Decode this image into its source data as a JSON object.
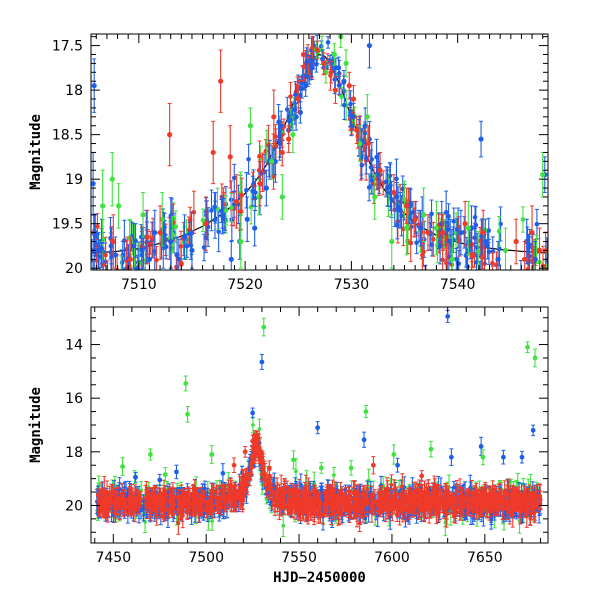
{
  "chart_data": [
    {
      "type": "scatter",
      "panel": "top",
      "xlabel": "",
      "ylabel": "Magnitude",
      "xlim": [
        7505.5,
        7548.5
      ],
      "ylim": [
        20.02,
        17.37
      ],
      "y_inverted": true,
      "xticks": [
        7510,
        7520,
        7530,
        7540
      ],
      "yticks": [
        17.5,
        18,
        18.5,
        19,
        19.5,
        20
      ],
      "ytick_labels": [
        "17.5",
        "18",
        "18.5",
        "19",
        "19.5",
        "20"
      ],
      "colors": {
        "blue": "#1f5fe8",
        "green": "#3fe23f",
        "red": "#ef3a2a",
        "model": "#000000"
      },
      "model_curve": {
        "x": [
          7505.5,
          7508,
          7510,
          7512,
          7514,
          7516,
          7518,
          7520,
          7521,
          7522,
          7523,
          7524,
          7525,
          7526,
          7526.5,
          7527,
          7527.5,
          7528,
          7529,
          7530,
          7531,
          7532,
          7533,
          7534,
          7536,
          7538,
          7540,
          7542,
          7544,
          7546,
          7548.5
        ],
        "y": [
          19.83,
          19.81,
          19.78,
          19.72,
          19.64,
          19.53,
          19.38,
          19.16,
          19.02,
          18.84,
          18.6,
          18.32,
          18.0,
          17.72,
          17.64,
          17.6,
          17.62,
          17.7,
          17.97,
          18.3,
          18.62,
          18.89,
          19.1,
          19.27,
          19.5,
          19.63,
          19.71,
          19.76,
          19.79,
          19.81,
          19.83
        ]
      },
      "series": [
        {
          "name": "",
          "color": "blue",
          "points": [
            [
              7505.7,
              19.05,
              0.35
            ],
            [
              7505.8,
              17.95,
              0.3
            ],
            [
              7505.9,
              19.6,
              0.2
            ],
            [
              7506.2,
              19.8,
              0.2
            ],
            [
              7506.5,
              19.7,
              0.25
            ],
            [
              7507.4,
              19.75,
              0.2
            ],
            [
              7507.8,
              19.85,
              0.2
            ],
            [
              7509.5,
              19.75,
              0.25
            ],
            [
              7510.3,
              19.8,
              0.25
            ],
            [
              7510.7,
              19.65,
              0.3
            ],
            [
              7511.0,
              19.9,
              0.2
            ],
            [
              7511.5,
              19.6,
              0.25
            ],
            [
              7512.3,
              19.75,
              0.25
            ],
            [
              7513.0,
              19.7,
              0.3
            ],
            [
              7513.6,
              19.85,
              0.2
            ],
            [
              7514.3,
              19.65,
              0.25
            ],
            [
              7515.0,
              19.8,
              0.2
            ],
            [
              7518.7,
              19.9,
              0.2
            ],
            [
              7519.5,
              19.7,
              0.2
            ],
            [
              7520.2,
              19.45,
              0.25
            ],
            [
              7520.9,
              19.55,
              0.2
            ],
            [
              7521.4,
              19.2,
              0.2
            ],
            [
              7522.0,
              19.1,
              0.2
            ],
            [
              7522.8,
              18.8,
              0.15
            ],
            [
              7523.3,
              18.6,
              0.15
            ],
            [
              7524.1,
              18.45,
              0.15
            ],
            [
              7524.8,
              18.3,
              0.15
            ],
            [
              7525.2,
              18.25,
              0.12
            ],
            [
              7525.7,
              17.95,
              0.12
            ],
            [
              7526.3,
              17.75,
              0.1
            ],
            [
              7527.3,
              17.65,
              0.1
            ],
            [
              7528.2,
              17.7,
              0.1
            ],
            [
              7528.8,
              17.75,
              0.12
            ],
            [
              7529.3,
              17.9,
              0.12
            ],
            [
              7530.2,
              18.3,
              0.15
            ],
            [
              7531.3,
              18.4,
              0.2
            ],
            [
              7531.7,
              17.5,
              0.25
            ],
            [
              7532.5,
              18.95,
              0.15
            ],
            [
              7533.4,
              19.1,
              0.2
            ],
            [
              7534.6,
              19.35,
              0.2
            ],
            [
              7535.5,
              19.3,
              0.2
            ],
            [
              7536.5,
              19.55,
              0.2
            ],
            [
              7537.4,
              19.6,
              0.2
            ],
            [
              7538.5,
              19.5,
              0.25
            ],
            [
              7539.3,
              19.7,
              0.25
            ],
            [
              7540.3,
              19.6,
              0.25
            ],
            [
              7541.3,
              19.55,
              0.25
            ],
            [
              7542.2,
              18.55,
              0.2
            ],
            [
              7542.6,
              19.7,
              0.25
            ],
            [
              7543.8,
              19.9,
              0.2
            ],
            [
              7546.5,
              19.7,
              0.25
            ],
            [
              7547.3,
              19.9,
              0.2
            ],
            [
              7548.2,
              18.95,
              0.2
            ]
          ]
        },
        {
          "name": "",
          "color": "green",
          "points": [
            [
              7506.6,
              19.3,
              0.4
            ],
            [
              7507.5,
              19.0,
              0.3
            ],
            [
              7508.1,
              19.3,
              0.25
            ],
            [
              7510.4,
              19.4,
              0.25
            ],
            [
              7512.2,
              19.45,
              0.3
            ],
            [
              7519.6,
              19.7,
              0.3
            ],
            [
              7520.5,
              18.4,
              0.2
            ],
            [
              7521.3,
              19.2,
              0.2
            ],
            [
              7522.5,
              18.8,
              0.2
            ],
            [
              7523.5,
              19.2,
              0.25
            ],
            [
              7524.5,
              18.5,
              0.2
            ],
            [
              7526.7,
              17.55,
              0.1
            ],
            [
              7527.6,
              17.8,
              0.12
            ],
            [
              7528.4,
              17.6,
              0.12
            ],
            [
              7529.0,
              17.4,
              0.12
            ],
            [
              7529.5,
              17.7,
              0.15
            ],
            [
              7530.8,
              18.6,
              0.2
            ],
            [
              7531.5,
              18.3,
              0.25
            ],
            [
              7532.2,
              19.2,
              0.25
            ],
            [
              7533.8,
              19.7,
              0.3
            ],
            [
              7535.2,
              19.55,
              0.3
            ],
            [
              7536.8,
              19.4,
              0.3
            ],
            [
              7538.0,
              19.55,
              0.3
            ],
            [
              7539.5,
              19.9,
              0.25
            ],
            [
              7541.0,
              19.55,
              0.3
            ],
            [
              7544.5,
              19.8,
              0.25
            ],
            [
              7548.0,
              18.95,
              0.25
            ]
          ]
        },
        {
          "name": "",
          "color": "red",
          "points": [
            [
              7507.6,
              19.7,
              0.3
            ],
            [
              7509.2,
              19.9,
              0.25
            ],
            [
              7510.8,
              19.65,
              0.3
            ],
            [
              7512.0,
              19.6,
              0.3
            ],
            [
              7512.9,
              18.5,
              0.35
            ],
            [
              7514.0,
              19.95,
              0.2
            ],
            [
              7516.3,
              19.5,
              0.3
            ],
            [
              7517.0,
              18.7,
              0.35
            ],
            [
              7517.7,
              17.9,
              0.35
            ],
            [
              7518.6,
              18.75,
              0.35
            ],
            [
              7519.2,
              19.25,
              0.3
            ],
            [
              7521.4,
              19.05,
              0.25
            ],
            [
              7522.7,
              18.3,
              0.3
            ],
            [
              7523.5,
              18.7,
              0.15
            ],
            [
              7524.1,
              18.55,
              0.15
            ],
            [
              7525.0,
              18.1,
              0.15
            ],
            [
              7525.5,
              17.6,
              0.3
            ],
            [
              7526.8,
              17.55,
              0.1
            ],
            [
              7527.4,
              17.7,
              0.12
            ],
            [
              7528.1,
              17.8,
              0.12
            ],
            [
              7528.5,
              18.0,
              0.15
            ],
            [
              7529.8,
              17.95,
              0.15
            ],
            [
              7530.2,
              18.1,
              0.15
            ],
            [
              7530.5,
              18.45,
              0.15
            ],
            [
              7531.6,
              18.6,
              0.2
            ],
            [
              7532.7,
              18.9,
              0.2
            ],
            [
              7534.0,
              19.15,
              0.2
            ],
            [
              7535.2,
              19.3,
              0.2
            ],
            [
              7536.0,
              19.45,
              0.2
            ],
            [
              7537.2,
              19.6,
              0.2
            ],
            [
              7538.6,
              19.6,
              0.2
            ],
            [
              7540.7,
              19.5,
              0.25
            ],
            [
              7542.4,
              19.6,
              0.25
            ],
            [
              7545.5,
              19.7,
              0.25
            ],
            [
              7546.3,
              19.9,
              0.2
            ],
            [
              7547.0,
              19.6,
              0.3
            ],
            [
              7547.7,
              19.8,
              0.25
            ]
          ]
        }
      ]
    },
    {
      "type": "scatter",
      "panel": "bottom",
      "xlabel": "HJD−2450000",
      "ylabel": "Magnitude",
      "xlim": [
        7438,
        7684
      ],
      "ylim": [
        21.4,
        12.6
      ],
      "y_inverted": true,
      "xticks": [
        7450,
        7500,
        7550,
        7600,
        7650
      ],
      "yticks": [
        14,
        16,
        18,
        20
      ],
      "ytick_labels": [
        "14",
        "16",
        "18",
        "20"
      ],
      "baseline_magnitude": 19.9,
      "outliers": [
        {
          "color": "blue",
          "points": [
            [
              7462,
              18.95
            ],
            [
              7475,
              19.05
            ],
            [
              7484,
              18.75
            ],
            [
              7509,
              18.8
            ],
            [
              7525,
              16.55
            ],
            [
              7530,
              14.65
            ],
            [
              7560,
              17.1
            ],
            [
              7585,
              17.55
            ],
            [
              7603,
              18.5
            ],
            [
              7630,
              12.95
            ],
            [
              7632,
              18.2
            ],
            [
              7648,
              17.8
            ],
            [
              7660,
              18.2
            ],
            [
              7670,
              18.2
            ],
            [
              7676,
              17.2
            ]
          ]
        },
        {
          "color": "green",
          "points": [
            [
              7455,
              18.55
            ],
            [
              7470,
              18.1
            ],
            [
              7478,
              18.85
            ],
            [
              7489,
              15.45
            ],
            [
              7490,
              16.6
            ],
            [
              7503,
              18.1
            ],
            [
              7531,
              13.35
            ],
            [
              7547,
              18.3
            ],
            [
              7562,
              18.6
            ],
            [
              7578,
              18.6
            ],
            [
              7586,
              16.5
            ],
            [
              7601,
              18.1
            ],
            [
              7621,
              17.9
            ],
            [
              7649,
              18.2
            ],
            [
              7673,
              14.1
            ],
            [
              7677,
              14.5
            ]
          ]
        },
        {
          "color": "red",
          "points": [
            [
              7515,
              18.5
            ],
            [
              7521,
              18.0
            ],
            [
              7525,
              17.6
            ],
            [
              7528,
              17.5
            ],
            [
              7534,
              18.6
            ],
            [
              7590,
              18.5
            ],
            [
              7616,
              18.9
            ]
          ]
        }
      ]
    }
  ]
}
